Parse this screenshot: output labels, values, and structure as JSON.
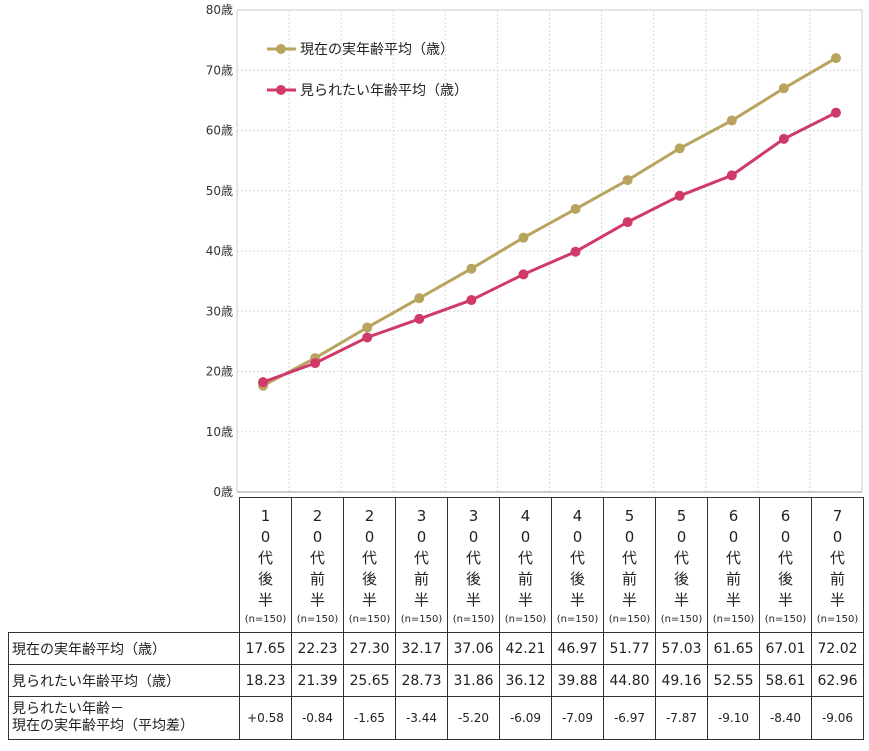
{
  "chart_data": {
    "type": "line",
    "categories": [
      "10代後半",
      "20代前半",
      "20代後半",
      "30代前半",
      "30代後半",
      "40代前半",
      "40代後半",
      "50代前半",
      "50代後半",
      "60代前半",
      "60代後半",
      "70代前半"
    ],
    "sample_size_label": "(n=150)",
    "series": [
      {
        "name": "現在の実年齢平均（歳）",
        "color": "#b8a45f",
        "values": [
          17.65,
          22.23,
          27.3,
          32.17,
          37.06,
          42.21,
          46.97,
          51.77,
          57.03,
          61.65,
          67.01,
          72.02
        ],
        "value_labels": [
          "17.65",
          "22.23",
          "27.30",
          "32.17",
          "37.06",
          "42.21",
          "46.97",
          "51.77",
          "57.03",
          "61.65",
          "67.01",
          "72.02"
        ]
      },
      {
        "name": "見られたい年齢平均（歳）",
        "color": "#d03a68",
        "values": [
          18.23,
          21.39,
          25.65,
          28.73,
          31.86,
          36.12,
          39.88,
          44.8,
          49.16,
          52.55,
          58.61,
          62.96
        ],
        "value_labels": [
          "18.23",
          "21.39",
          "25.65",
          "28.73",
          "31.86",
          "36.12",
          "39.88",
          "44.80",
          "49.16",
          "52.55",
          "58.61",
          "62.96"
        ]
      }
    ],
    "y_ticks": [
      "0歳",
      "10歳",
      "20歳",
      "30歳",
      "40歳",
      "50歳",
      "60歳",
      "70歳",
      "80歳"
    ],
    "ylim": [
      0,
      80
    ],
    "grid": true,
    "legend_position": "top-left",
    "table": {
      "row_labels": [
        "現在の実年齢平均（歳）",
        "見られたい年齢平均（歳）"
      ],
      "diff_label_line1": "見られたい年齢－",
      "diff_label_line2": "現在の実年齢平均（平均差）",
      "diff_values": [
        "+0.58",
        "-0.84",
        "-1.65",
        "-3.44",
        "-5.20",
        "-6.09",
        "-7.09",
        "-6.97",
        "-7.87",
        "-9.10",
        "-8.40",
        "-9.06"
      ]
    }
  }
}
